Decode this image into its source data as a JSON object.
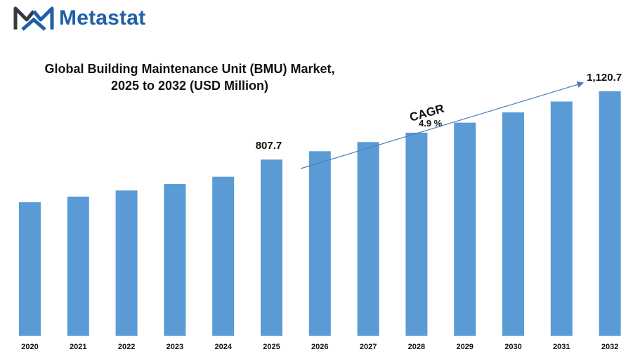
{
  "brand": {
    "name": "Metastat"
  },
  "colors": {
    "bar": "#5b9bd5",
    "brand": "#1f5fa8",
    "arrow": "#4a7fc1"
  },
  "chart_data": {
    "type": "bar",
    "title": "Global Building Maintenance Unit (BMU) Market, 2025 to 2032 (USD Million)",
    "title_lines": [
      "Global Building Maintenance Unit (BMU) Market,",
      "2025 to 2032 (USD Million)"
    ],
    "categories": [
      "2020",
      "2021",
      "2022",
      "2023",
      "2024",
      "2025",
      "2026",
      "2027",
      "2028",
      "2029",
      "2030",
      "2031",
      "2032"
    ],
    "values": [
      612,
      638,
      666,
      696,
      729,
      807.7,
      846,
      888,
      931,
      977,
      1024,
      1074,
      1120.7
    ],
    "ylim": [
      0,
      1200
    ],
    "grid": false,
    "data_labels": [
      {
        "category": "2025",
        "text": "807.7"
      },
      {
        "category": "2032",
        "text": "1,120.7"
      }
    ],
    "annotation": {
      "label": "CAGR",
      "value": "4.9  %"
    }
  }
}
